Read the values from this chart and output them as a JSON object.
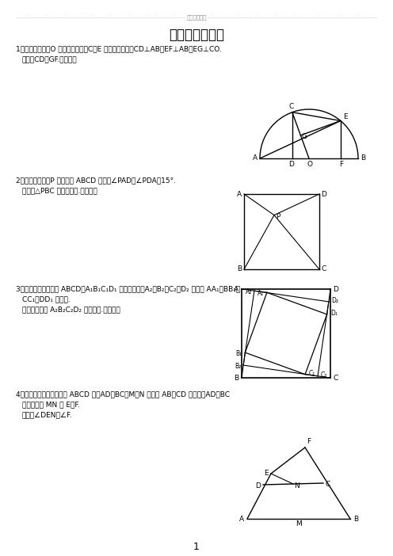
{
  "title": "经典难题（一）",
  "header_dots": "……………………………………最新资料库存……………………………………",
  "page_number": "1",
  "bg": "#ffffff",
  "problems": [
    {
      "n": "1",
      "l1": "1、已知：如图，O 是半圆的圆心，C、E 是圆上的两点，CD⊥AB，EF⊥AB，EG⊥CO.",
      "l2": "   求证：CD＝GF.（初二）"
    },
    {
      "n": "2",
      "l1": "2、已知：如图，P 是正方形 ABCD 内点，∠PAD＝∠PDA＝15°.",
      "l2": "   求证：△PBC 是正三角形.（初二）"
    },
    {
      "n": "3",
      "l1": "3、如图，已知四边形 ABCD、A₁B₁C₁D₁ 都是正方形，A₂、B₂、C₂、D₂ 分别是 AA₁、BB₁、",
      "l2": "   CC₁、DD₁ 的中点.",
      "l3": "   求证：四边形 A₂B₂C₂D₂ 是正方形.（初二）"
    },
    {
      "n": "4",
      "l1": "4、已知：如图，在四边形 ABCD 中，AD＝BC，M、N 分别是 AB、CD 的中点，AD、BC",
      "l2": "   的延长线交 MN 于 E、F.",
      "l3": "   求证：∠DEN＝∠F."
    }
  ]
}
